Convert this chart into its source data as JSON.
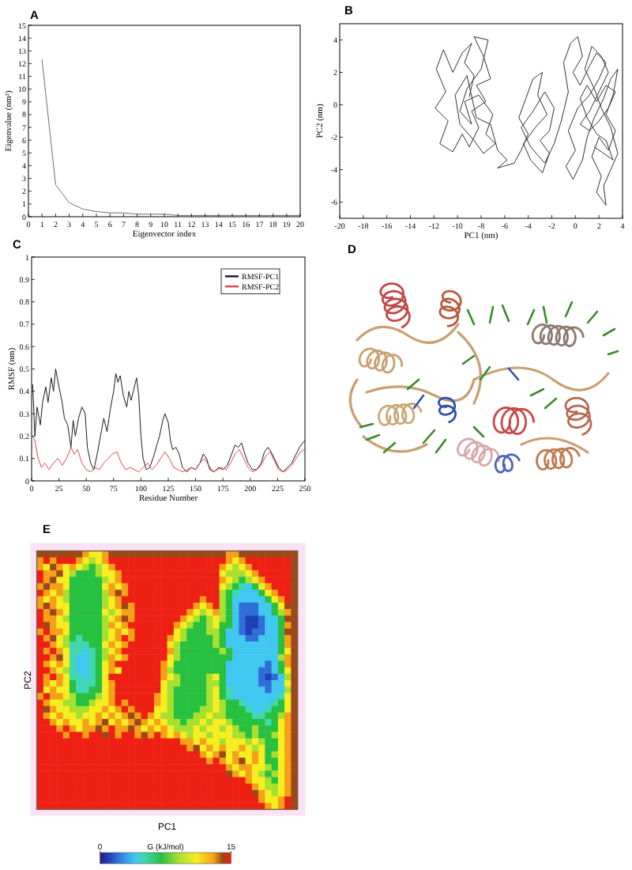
{
  "chart_data": [
    {
      "type": "line",
      "title": "A",
      "xlabel": "Eigenvector index",
      "ylabel": "Eigenvalue (nm²)",
      "x": [
        1,
        2,
        3,
        4,
        5,
        6,
        7,
        8,
        9,
        10,
        11,
        12,
        13,
        14,
        15,
        16,
        17,
        18,
        19,
        20
      ],
      "values": [
        12.3,
        2.5,
        1.1,
        0.6,
        0.4,
        0.3,
        0.3,
        0.2,
        0.2,
        0.2,
        0.1,
        0.1,
        0.1,
        0.1,
        0.1,
        0.1,
        0.1,
        0.1,
        0.1,
        0.1
      ],
      "color": "#6e6e6e",
      "xlim": [
        0,
        20
      ],
      "ylim": [
        0,
        15
      ],
      "xticks": [
        0,
        1,
        2,
        3,
        4,
        5,
        6,
        7,
        8,
        9,
        10,
        11,
        12,
        13,
        14,
        15,
        16,
        17,
        18,
        19,
        20
      ],
      "yticks": [
        0,
        1,
        2,
        3,
        4,
        5,
        6,
        7,
        8,
        9,
        10,
        11,
        12,
        13,
        14,
        15
      ]
    },
    {
      "type": "line",
      "title": "B",
      "xlabel": "PC1 (nm)",
      "ylabel": "PC2 (nm)",
      "x": [
        -9,
        -8.6,
        -9.4,
        -8.8,
        -9.6,
        -10.4,
        -11.2,
        -11.8,
        -11,
        -11.9,
        -10.8,
        -11.5,
        -10.4,
        -9.6,
        -9,
        -8.2,
        -8.8,
        -7.6,
        -8.4,
        -7.2,
        -7.8,
        -8.6,
        -7.4,
        -8,
        -9.2,
        -9.8,
        -8.8,
        -9.4,
        -8.2,
        -7,
        -7.6,
        -6.8,
        -7.8,
        -8.6,
        -9.8,
        -10.2,
        -9.2,
        -8.4,
        -7.2,
        -6.6,
        -5.8,
        -6.6,
        -5.2,
        -4.6,
        -4,
        -4.8,
        -4.2,
        -3.6,
        -2.8,
        -3.2,
        -2.4,
        -3.4,
        -4.4,
        -3.8,
        -2.8,
        -2.2,
        -3,
        -2.2,
        -1.8,
        -2.6,
        -3.6,
        -4.6,
        -3.8,
        -2.6,
        -1.8,
        -1.2,
        -0.6,
        -1,
        -0.4,
        0.2,
        0.6,
        -0.2,
        0.4,
        1.2,
        1.8,
        2.6,
        2,
        1.2,
        0.2,
        -0.6,
        0,
        -0.8,
        -0.2,
        0.6,
        1,
        1.6,
        2.4,
        3,
        3.6,
        3.2,
        2.6,
        3.4,
        2.8,
        2,
        1.4,
        2.2,
        1.8,
        2.6,
        2.4,
        3,
        3.6,
        3,
        2.2,
        1.6,
        0.8,
        1.4,
        2.2,
        2.8,
        2,
        1.2,
        0.4,
        1.2,
        2,
        2.8,
        3.4,
        2.6,
        1.8,
        1,
        0.4,
        1,
        1.8,
        2.6,
        3.2,
        2.4,
        1.6
      ],
      "values": [
        0.5,
        1.8,
        2.6,
        3.8,
        3.2,
        2,
        3.4,
        2.2,
        0.8,
        -0.2,
        -1,
        -2.4,
        -2.9,
        -1.8,
        -2.6,
        -1.4,
        -0.4,
        0.2,
        1.2,
        1.6,
        3,
        4.2,
        4,
        2.2,
        1,
        -0.4,
        -1.2,
        0.2,
        0.6,
        -0.6,
        -1.8,
        -2.4,
        -3,
        -2.2,
        -1.2,
        0.6,
        1.8,
        -0.8,
        -1.2,
        -2.8,
        -3.4,
        -3.9,
        -3.6,
        -2.8,
        -1.8,
        -0.8,
        0.4,
        1.6,
        2,
        0.6,
        -0.6,
        -1.4,
        -2.4,
        -3.4,
        -4.2,
        -3,
        -2.2,
        -1.6,
        -0.2,
        0.8,
        -0.4,
        -1.4,
        -2.6,
        -3.6,
        -2.4,
        -1,
        0.8,
        2.6,
        3.8,
        4.2,
        3,
        2,
        1.2,
        2.4,
        3.2,
        2.6,
        1.6,
        0.6,
        -0.2,
        -1.6,
        -2.8,
        -3.8,
        -4.6,
        -3.4,
        -2,
        -0.8,
        0.4,
        1.6,
        2.2,
        0.6,
        -0.6,
        -1.6,
        -2.8,
        -2,
        -3.2,
        -4.4,
        -5.4,
        -6.2,
        -5,
        -4,
        -3,
        -1.4,
        -0.2,
        1,
        2.2,
        3.6,
        3,
        2,
        0.8,
        -0.4,
        -1.2,
        -1.6,
        -1,
        -0.2,
        0.8,
        1.2,
        0.2,
        1.2,
        0.4,
        -0.8,
        -1.8,
        -2.2,
        -3.4,
        -3,
        -2.6
      ],
      "color": "#303030",
      "xlim": [
        -20,
        4
      ],
      "ylim": [
        -7,
        5
      ],
      "xticks": [
        -20,
        -18,
        -16,
        -14,
        -12,
        -10,
        -8,
        -6,
        -4,
        -2,
        0,
        2,
        4
      ],
      "yticks": [
        -6,
        -4,
        -2,
        0,
        2,
        4
      ]
    },
    {
      "type": "line",
      "title": "C",
      "xlabel": "Residue Number",
      "ylabel": "RMSF (nm)",
      "xlim": [
        0,
        250
      ],
      "ylim": [
        0,
        1
      ],
      "xticks": [
        0,
        25,
        50,
        75,
        100,
        125,
        150,
        175,
        200,
        225,
        250
      ],
      "yticks": [
        0,
        0.1,
        0.2,
        0.3,
        0.4,
        0.5,
        0.6,
        0.7,
        0.8,
        0.9,
        1
      ],
      "legend": "top right",
      "series": [
        {
          "name": "RMSF-PC1",
          "color": "#1a1a1a",
          "x": [
            1,
            3,
            5,
            8,
            10,
            13,
            15,
            18,
            20,
            22,
            25,
            28,
            30,
            33,
            36,
            38,
            40,
            43,
            46,
            49,
            51,
            54,
            57,
            60,
            63,
            66,
            69,
            72,
            75,
            77,
            79,
            81,
            84,
            87,
            89,
            91,
            94,
            96,
            98,
            100,
            102,
            105,
            108,
            111,
            114,
            117,
            120,
            122,
            125,
            127,
            129,
            132,
            135,
            138,
            142,
            146,
            150,
            154,
            157,
            160,
            163,
            167,
            171,
            175,
            179,
            183,
            186,
            189,
            192,
            195,
            198,
            202,
            206,
            210,
            213,
            216,
            219,
            222,
            226,
            230,
            234,
            238,
            242,
            245,
            248,
            250
          ],
          "values": [
            0.43,
            0.2,
            0.33,
            0.25,
            0.35,
            0.42,
            0.35,
            0.46,
            0.4,
            0.5,
            0.42,
            0.35,
            0.28,
            0.25,
            0.15,
            0.27,
            0.2,
            0.28,
            0.33,
            0.3,
            0.15,
            0.08,
            0.05,
            0.12,
            0.2,
            0.28,
            0.22,
            0.32,
            0.4,
            0.48,
            0.44,
            0.47,
            0.38,
            0.33,
            0.4,
            0.36,
            0.42,
            0.46,
            0.38,
            0.2,
            0.1,
            0.05,
            0.06,
            0.1,
            0.15,
            0.2,
            0.27,
            0.3,
            0.26,
            0.18,
            0.14,
            0.15,
            0.12,
            0.06,
            0.04,
            0.06,
            0.05,
            0.08,
            0.12,
            0.1,
            0.05,
            0.04,
            0.06,
            0.05,
            0.07,
            0.12,
            0.16,
            0.15,
            0.17,
            0.12,
            0.08,
            0.05,
            0.05,
            0.08,
            0.13,
            0.15,
            0.13,
            0.1,
            0.06,
            0.04,
            0.06,
            0.08,
            0.12,
            0.15,
            0.17,
            0.18
          ]
        },
        {
          "name": "RMSF-PC2",
          "color": "#e04848",
          "x": [
            1,
            3,
            6,
            9,
            12,
            16,
            20,
            24,
            28,
            32,
            36,
            39,
            42,
            46,
            50,
            54,
            58,
            62,
            66,
            70,
            74,
            78,
            82,
            86,
            90,
            94,
            98,
            102,
            106,
            110,
            114,
            118,
            122,
            126,
            130,
            134,
            138,
            142,
            146,
            150,
            154,
            158,
            162,
            166,
            170,
            174,
            178,
            182,
            186,
            190,
            194,
            198,
            202,
            206,
            210,
            214,
            218,
            222,
            226,
            230,
            234,
            238,
            242,
            246,
            250
          ],
          "values": [
            0.2,
            0.18,
            0.1,
            0.06,
            0.08,
            0.05,
            0.08,
            0.1,
            0.07,
            0.1,
            0.15,
            0.12,
            0.14,
            0.08,
            0.05,
            0.04,
            0.06,
            0.05,
            0.08,
            0.1,
            0.12,
            0.13,
            0.08,
            0.05,
            0.06,
            0.05,
            0.04,
            0.06,
            0.08,
            0.05,
            0.07,
            0.1,
            0.13,
            0.1,
            0.06,
            0.05,
            0.04,
            0.05,
            0.06,
            0.05,
            0.08,
            0.1,
            0.07,
            0.04,
            0.05,
            0.06,
            0.05,
            0.08,
            0.12,
            0.14,
            0.1,
            0.06,
            0.04,
            0.05,
            0.07,
            0.11,
            0.13,
            0.09,
            0.05,
            0.04,
            0.05,
            0.07,
            0.1,
            0.13,
            0.14
          ]
        }
      ]
    },
    {
      "type": "other",
      "title": "D"
    },
    {
      "type": "heatmap",
      "title": "E",
      "xlabel": "PC1",
      "ylabel": "PC2",
      "clabel": "G (kJ/mol)",
      "clim": [
        0,
        15
      ],
      "cticks": [
        0,
        15
      ],
      "categories": [
        null,
        null,
        null,
        null,
        null,
        null,
        null,
        null,
        null,
        null,
        null,
        null,
        null,
        null,
        null,
        null,
        null,
        null,
        null,
        null,
        null,
        null,
        null,
        null,
        null,
        null,
        null,
        null,
        null,
        null,
        null,
        null,
        null,
        null,
        null,
        null,
        null,
        null,
        null,
        null
      ],
      "y_categories": [
        null,
        null,
        null,
        null,
        null,
        null,
        null,
        null,
        null,
        null,
        null,
        null,
        null,
        null,
        null,
        null,
        null,
        null,
        null,
        null,
        null,
        null,
        null,
        null,
        null,
        null,
        null,
        null,
        null,
        null,
        null,
        null,
        null,
        null,
        null,
        null,
        null,
        null,
        null,
        null
      ],
      "cells": [
        [
          14,
          14,
          14,
          14,
          14,
          14,
          14,
          13,
          11,
          11,
          13,
          14,
          14,
          14,
          14,
          14,
          14,
          14,
          14,
          14,
          14,
          14,
          14,
          14,
          14,
          14,
          14,
          14,
          14,
          13,
          13,
          14,
          14,
          14,
          14,
          14,
          14,
          14,
          14,
          14
        ],
        [
          13,
          15,
          13,
          15,
          15,
          15,
          13,
          11,
          9,
          11,
          13,
          15,
          15,
          15,
          15,
          15,
          15,
          15,
          15,
          15,
          15,
          15,
          15,
          15,
          15,
          15,
          15,
          15,
          15,
          13,
          11,
          13,
          15,
          15,
          15,
          15,
          15,
          15,
          15,
          14
        ],
        [
          13,
          11,
          14,
          13,
          11,
          13,
          11,
          9,
          7,
          9,
          11,
          13,
          15,
          15,
          15,
          15,
          15,
          15,
          15,
          15,
          15,
          15,
          15,
          15,
          15,
          15,
          15,
          15,
          13,
          11,
          9,
          11,
          13,
          15,
          15,
          15,
          15,
          15,
          15,
          14
        ],
        [
          15,
          13,
          13,
          14,
          11,
          9,
          7,
          7,
          7,
          9,
          11,
          11,
          13,
          15,
          15,
          15,
          15,
          15,
          15,
          15,
          15,
          15,
          15,
          15,
          15,
          15,
          15,
          15,
          11,
          9,
          9,
          9,
          11,
          13,
          15,
          15,
          15,
          15,
          15,
          14
        ],
        [
          15,
          13,
          14,
          11,
          11,
          7,
          7,
          7,
          7,
          7,
          9,
          11,
          13,
          15,
          15,
          15,
          15,
          15,
          15,
          15,
          15,
          15,
          15,
          15,
          15,
          15,
          15,
          15,
          13,
          11,
          9,
          7,
          9,
          11,
          13,
          15,
          15,
          15,
          15,
          14
        ],
        [
          13,
          14,
          13,
          13,
          11,
          7,
          7,
          7,
          7,
          7,
          11,
          13,
          11,
          13,
          15,
          15,
          15,
          15,
          15,
          15,
          15,
          15,
          15,
          15,
          15,
          15,
          15,
          15,
          11,
          9,
          7,
          5,
          4,
          7,
          11,
          13,
          15,
          15,
          15,
          14
        ],
        [
          15,
          13,
          11,
          13,
          9,
          7,
          7,
          7,
          7,
          7,
          9,
          13,
          14,
          13,
          15,
          15,
          15,
          15,
          15,
          15,
          15,
          15,
          15,
          15,
          15,
          15,
          15,
          15,
          9,
          7,
          5,
          4,
          4,
          4,
          7,
          11,
          13,
          15,
          15,
          14
        ],
        [
          13,
          11,
          13,
          11,
          9,
          7,
          7,
          7,
          7,
          7,
          9,
          11,
          13,
          15,
          15,
          15,
          15,
          15,
          15,
          15,
          15,
          15,
          15,
          15,
          15,
          13,
          15,
          15,
          9,
          7,
          4,
          4,
          4,
          4,
          4,
          7,
          11,
          13,
          15,
          14
        ],
        [
          13,
          14,
          13,
          11,
          11,
          7,
          7,
          7,
          7,
          7,
          9,
          11,
          13,
          14,
          13,
          15,
          15,
          15,
          15,
          15,
          15,
          15,
          15,
          15,
          13,
          11,
          13,
          15,
          9,
          7,
          4,
          2,
          2,
          2,
          4,
          4,
          7,
          11,
          14,
          14
        ],
        [
          15,
          13,
          14,
          13,
          11,
          7,
          7,
          7,
          7,
          7,
          11,
          9,
          11,
          13,
          13,
          15,
          15,
          15,
          15,
          15,
          15,
          15,
          15,
          13,
          11,
          9,
          11,
          13,
          9,
          7,
          4,
          2,
          2,
          2,
          4,
          4,
          7,
          9,
          13,
          14
        ],
        [
          15,
          13,
          13,
          11,
          9,
          7,
          7,
          7,
          7,
          7,
          9,
          11,
          13,
          14,
          13,
          15,
          15,
          15,
          15,
          15,
          15,
          15,
          13,
          11,
          9,
          7,
          9,
          11,
          9,
          7,
          4,
          2,
          1,
          1,
          2,
          4,
          4,
          7,
          14,
          14
        ],
        [
          15,
          14,
          13,
          11,
          11,
          7,
          7,
          7,
          7,
          7,
          9,
          13,
          11,
          13,
          15,
          15,
          15,
          15,
          15,
          15,
          15,
          13,
          11,
          9,
          7,
          7,
          9,
          11,
          7,
          7,
          4,
          2,
          1,
          1,
          2,
          4,
          4,
          7,
          13,
          14
        ],
        [
          13,
          15,
          13,
          13,
          11,
          7,
          7,
          7,
          7,
          7,
          9,
          11,
          13,
          11,
          13,
          15,
          15,
          15,
          15,
          15,
          15,
          11,
          9,
          7,
          7,
          7,
          9,
          9,
          7,
          4,
          4,
          2,
          1,
          2,
          2,
          4,
          4,
          7,
          14,
          14
        ],
        [
          15,
          13,
          14,
          11,
          9,
          7,
          5,
          7,
          7,
          7,
          9,
          11,
          13,
          15,
          13,
          15,
          15,
          15,
          15,
          15,
          13,
          11,
          9,
          7,
          7,
          7,
          7,
          9,
          7,
          4,
          4,
          4,
          2,
          2,
          4,
          4,
          4,
          7,
          13,
          14
        ],
        [
          15,
          15,
          13,
          11,
          9,
          5,
          5,
          5,
          7,
          7,
          11,
          13,
          11,
          13,
          15,
          15,
          15,
          15,
          15,
          15,
          11,
          9,
          7,
          7,
          7,
          7,
          7,
          9,
          7,
          4,
          4,
          4,
          4,
          4,
          4,
          4,
          4,
          7,
          13,
          14
        ],
        [
          15,
          13,
          15,
          13,
          11,
          5,
          5,
          4,
          5,
          7,
          9,
          11,
          13,
          15,
          15,
          15,
          15,
          15,
          15,
          15,
          13,
          9,
          7,
          7,
          7,
          7,
          7,
          7,
          9,
          7,
          4,
          4,
          4,
          4,
          4,
          4,
          4,
          7,
          11,
          14
        ],
        [
          15,
          15,
          13,
          14,
          11,
          5,
          4,
          4,
          5,
          7,
          9,
          13,
          11,
          13,
          15,
          15,
          15,
          15,
          15,
          15,
          11,
          9,
          7,
          7,
          7,
          7,
          7,
          7,
          7,
          7,
          4,
          4,
          4,
          4,
          4,
          4,
          4,
          9,
          13,
          14
        ],
        [
          15,
          13,
          11,
          13,
          11,
          5,
          4,
          4,
          5,
          7,
          11,
          13,
          15,
          15,
          15,
          15,
          15,
          15,
          15,
          13,
          11,
          7,
          7,
          7,
          7,
          7,
          7,
          7,
          7,
          4,
          4,
          4,
          4,
          4,
          4,
          2,
          4,
          7,
          13,
          14
        ],
        [
          15,
          15,
          13,
          11,
          9,
          5,
          4,
          4,
          5,
          7,
          11,
          13,
          11,
          15,
          15,
          15,
          15,
          15,
          15,
          13,
          9,
          7,
          7,
          7,
          7,
          7,
          7,
          7,
          7,
          4,
          4,
          4,
          4,
          4,
          2,
          2,
          4,
          7,
          11,
          14
        ],
        [
          15,
          13,
          15,
          13,
          11,
          5,
          5,
          4,
          5,
          7,
          11,
          15,
          15,
          15,
          15,
          15,
          15,
          15,
          15,
          13,
          11,
          9,
          7,
          7,
          7,
          7,
          9,
          11,
          7,
          4,
          4,
          4,
          4,
          4,
          2,
          1,
          2,
          4,
          9,
          14
        ],
        [
          15,
          13,
          11,
          13,
          11,
          7,
          5,
          5,
          5,
          7,
          11,
          13,
          15,
          15,
          15,
          15,
          15,
          15,
          15,
          11,
          9,
          9,
          7,
          7,
          7,
          7,
          9,
          9,
          7,
          4,
          4,
          4,
          4,
          4,
          2,
          2,
          4,
          4,
          11,
          14
        ],
        [
          15,
          11,
          13,
          11,
          11,
          7,
          5,
          5,
          7,
          7,
          11,
          13,
          15,
          15,
          15,
          15,
          15,
          15,
          15,
          11,
          9,
          7,
          7,
          7,
          7,
          7,
          9,
          11,
          7,
          5,
          4,
          4,
          4,
          4,
          4,
          2,
          4,
          4,
          9,
          14
        ],
        [
          13,
          15,
          13,
          13,
          11,
          9,
          7,
          7,
          7,
          9,
          11,
          13,
          15,
          15,
          15,
          15,
          15,
          15,
          13,
          11,
          9,
          7,
          7,
          7,
          7,
          7,
          9,
          11,
          7,
          5,
          4,
          4,
          4,
          4,
          4,
          4,
          4,
          5,
          11,
          14
        ],
        [
          15,
          13,
          11,
          11,
          9,
          9,
          7,
          7,
          9,
          11,
          11,
          13,
          15,
          13,
          15,
          15,
          15,
          15,
          13,
          11,
          9,
          7,
          7,
          7,
          7,
          7,
          9,
          11,
          9,
          7,
          7,
          5,
          4,
          4,
          4,
          4,
          5,
          7,
          11,
          14
        ],
        [
          15,
          14,
          13,
          11,
          11,
          9,
          9,
          9,
          11,
          11,
          13,
          11,
          13,
          15,
          13,
          15,
          15,
          15,
          11,
          11,
          9,
          7,
          7,
          7,
          7,
          9,
          9,
          11,
          9,
          7,
          7,
          7,
          5,
          4,
          4,
          5,
          7,
          7,
          11,
          14
        ],
        [
          15,
          13,
          11,
          13,
          11,
          11,
          9,
          11,
          11,
          13,
          11,
          13,
          11,
          13,
          14,
          13,
          15,
          13,
          11,
          9,
          9,
          7,
          7,
          7,
          9,
          9,
          11,
          9,
          9,
          7,
          7,
          7,
          7,
          5,
          5,
          7,
          7,
          9,
          13,
          14
        ],
        [
          15,
          15,
          13,
          11,
          13,
          11,
          11,
          13,
          11,
          13,
          14,
          11,
          13,
          11,
          13,
          14,
          13,
          11,
          13,
          11,
          9,
          9,
          7,
          9,
          9,
          11,
          9,
          11,
          11,
          9,
          7,
          7,
          7,
          7,
          7,
          5,
          7,
          11,
          13,
          14
        ],
        [
          15,
          15,
          15,
          13,
          15,
          13,
          11,
          13,
          13,
          14,
          13,
          15,
          13,
          13,
          14,
          13,
          11,
          13,
          11,
          13,
          11,
          9,
          9,
          9,
          11,
          9,
          11,
          11,
          9,
          11,
          9,
          7,
          7,
          9,
          7,
          7,
          7,
          11,
          13,
          14
        ],
        [
          15,
          15,
          15,
          15,
          13,
          15,
          15,
          13,
          15,
          15,
          14,
          15,
          13,
          15,
          15,
          13,
          14,
          13,
          15,
          13,
          11,
          13,
          11,
          9,
          11,
          11,
          9,
          11,
          11,
          11,
          9,
          9,
          7,
          9,
          7,
          7,
          9,
          11,
          13,
          14
        ],
        [
          15,
          15,
          15,
          15,
          15,
          15,
          15,
          15,
          15,
          15,
          15,
          15,
          15,
          15,
          15,
          15,
          15,
          15,
          15,
          15,
          15,
          15,
          13,
          13,
          11,
          13,
          11,
          11,
          9,
          11,
          11,
          11,
          9,
          11,
          9,
          7,
          7,
          11,
          13,
          14
        ],
        [
          15,
          15,
          15,
          15,
          15,
          15,
          15,
          15,
          15,
          15,
          15,
          15,
          15,
          15,
          15,
          15,
          15,
          15,
          15,
          15,
          15,
          15,
          15,
          13,
          14,
          11,
          13,
          11,
          13,
          11,
          11,
          13,
          11,
          9,
          11,
          7,
          7,
          11,
          13,
          14
        ],
        [
          15,
          15,
          15,
          15,
          15,
          15,
          15,
          15,
          15,
          15,
          15,
          15,
          15,
          15,
          15,
          15,
          15,
          15,
          15,
          15,
          15,
          15,
          15,
          15,
          15,
          13,
          11,
          13,
          14,
          11,
          13,
          11,
          11,
          13,
          11,
          7,
          9,
          11,
          13,
          14
        ],
        [
          15,
          15,
          15,
          15,
          15,
          15,
          15,
          15,
          15,
          15,
          15,
          15,
          15,
          15,
          15,
          15,
          15,
          15,
          15,
          15,
          15,
          15,
          15,
          15,
          15,
          15,
          13,
          15,
          13,
          11,
          13,
          14,
          11,
          13,
          11,
          7,
          7,
          11,
          13,
          14
        ],
        [
          15,
          15,
          15,
          15,
          15,
          15,
          15,
          15,
          15,
          15,
          15,
          15,
          15,
          15,
          15,
          15,
          15,
          15,
          15,
          15,
          15,
          15,
          15,
          15,
          15,
          15,
          15,
          15,
          15,
          13,
          11,
          13,
          13,
          11,
          11,
          9,
          7,
          11,
          13,
          14
        ],
        [
          15,
          15,
          15,
          15,
          15,
          15,
          15,
          15,
          15,
          15,
          15,
          15,
          15,
          15,
          15,
          15,
          15,
          15,
          15,
          15,
          15,
          15,
          15,
          15,
          15,
          15,
          15,
          15,
          15,
          14,
          13,
          11,
          13,
          11,
          9,
          7,
          9,
          11,
          13,
          14
        ],
        [
          15,
          15,
          15,
          15,
          15,
          15,
          15,
          15,
          15,
          15,
          15,
          15,
          15,
          15,
          15,
          15,
          15,
          15,
          15,
          15,
          15,
          15,
          15,
          15,
          15,
          15,
          15,
          15,
          15,
          15,
          15,
          15,
          13,
          11,
          11,
          9,
          7,
          11,
          13,
          14
        ],
        [
          15,
          15,
          15,
          15,
          15,
          15,
          15,
          15,
          15,
          15,
          15,
          15,
          15,
          15,
          15,
          15,
          15,
          15,
          15,
          15,
          15,
          15,
          15,
          15,
          15,
          15,
          15,
          15,
          15,
          15,
          15,
          15,
          15,
          13,
          11,
          9,
          9,
          11,
          13,
          14
        ],
        [
          15,
          15,
          15,
          15,
          15,
          15,
          15,
          15,
          15,
          15,
          15,
          15,
          15,
          15,
          15,
          15,
          15,
          15,
          15,
          15,
          15,
          15,
          15,
          15,
          15,
          15,
          15,
          15,
          15,
          15,
          15,
          15,
          15,
          14,
          13,
          11,
          9,
          11,
          13,
          14
        ],
        [
          15,
          15,
          15,
          15,
          15,
          15,
          15,
          15,
          15,
          15,
          15,
          15,
          15,
          15,
          15,
          15,
          15,
          15,
          15,
          15,
          15,
          15,
          15,
          15,
          15,
          15,
          15,
          15,
          15,
          15,
          15,
          15,
          15,
          15,
          13,
          11,
          11,
          13,
          15,
          14
        ],
        [
          15,
          15,
          15,
          15,
          15,
          15,
          15,
          15,
          15,
          15,
          15,
          15,
          15,
          15,
          15,
          15,
          15,
          15,
          15,
          15,
          15,
          15,
          15,
          15,
          15,
          15,
          15,
          15,
          15,
          15,
          15,
          15,
          15,
          15,
          15,
          13,
          11,
          13,
          15,
          14
        ]
      ]
    }
  ]
}
